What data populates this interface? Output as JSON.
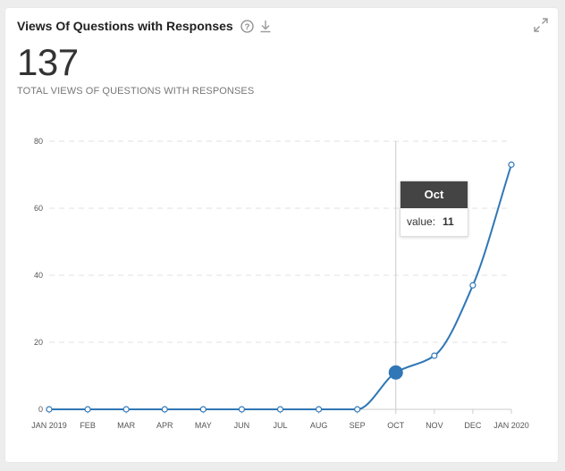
{
  "widget": {
    "title": "Views Of Questions with Responses",
    "total": "137",
    "total_label": "TOTAL VIEWS OF QUESTIONS WITH RESPONSES",
    "icons": [
      "help-icon",
      "download-icon",
      "expand-icon"
    ]
  },
  "tooltip": {
    "month": "Oct",
    "value_label": "value:",
    "value": "11"
  },
  "colors": {
    "line": "#2f77b6",
    "grid": "#e0e0e0",
    "crosshair": "#cccccc",
    "tooltip_header": "#444444"
  },
  "chart_data": {
    "type": "line",
    "categories": [
      "JAN 2019",
      "FEB",
      "MAR",
      "APR",
      "MAY",
      "JUN",
      "JUL",
      "AUG",
      "SEP",
      "OCT",
      "NOV",
      "DEC",
      "JAN 2020"
    ],
    "values": [
      0,
      0,
      0,
      0,
      0,
      0,
      0,
      0,
      0,
      11,
      16,
      37,
      73
    ],
    "ylim": [
      0,
      80
    ],
    "yticks": [
      0,
      20,
      40,
      60,
      80
    ],
    "grid": true,
    "highlighted_index": 9
  }
}
